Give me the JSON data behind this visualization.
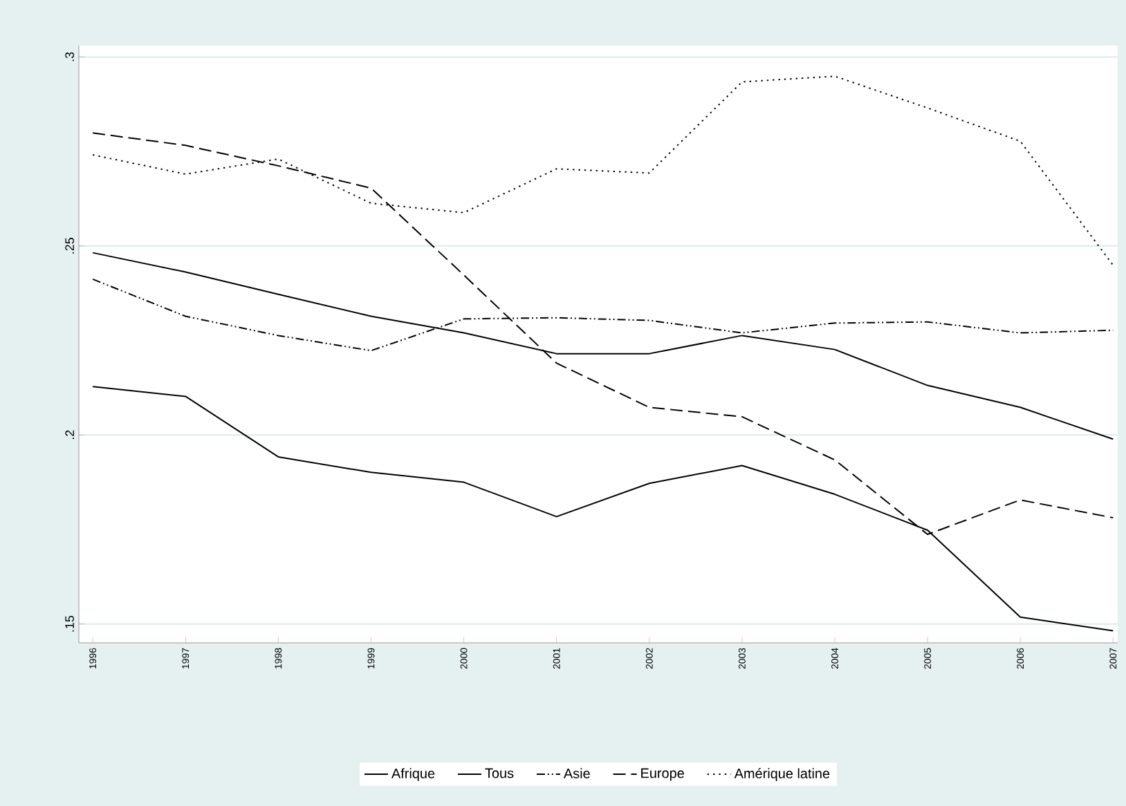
{
  "chart_data": {
    "type": "line",
    "x": [
      1996,
      1997,
      1998,
      1999,
      2000,
      2001,
      2002,
      2003,
      2004,
      2005,
      2006,
      2007
    ],
    "series": [
      {
        "name": "Afrique",
        "color": "#000000",
        "line_style": "solid",
        "values": [
          0.2128,
          0.2102,
          0.1942,
          0.1901,
          0.1875,
          0.1784,
          0.1872,
          0.1919,
          0.1843,
          0.1748,
          0.1518,
          0.1482
        ]
      },
      {
        "name": "Tous",
        "color": "#000000",
        "line_style": "solid",
        "values": [
          0.2482,
          0.2431,
          0.2372,
          0.2314,
          0.227,
          0.2215,
          0.2215,
          0.2263,
          0.2226,
          0.2131,
          0.2073,
          0.1989
        ]
      },
      {
        "name": "Asie",
        "color": "#000000",
        "line_style": "dashdotdot",
        "values": [
          0.2412,
          0.2314,
          0.2263,
          0.2223,
          0.2307,
          0.231,
          0.2303,
          0.227,
          0.2296,
          0.2299,
          0.227,
          0.2277
        ]
      },
      {
        "name": "Europe",
        "color": "#000000",
        "line_style": "dashed",
        "values": [
          0.2799,
          0.2766,
          0.2712,
          0.2653,
          0.2423,
          0.219,
          0.2073,
          0.2048,
          0.1934,
          0.1737,
          0.1828,
          0.1781
        ]
      },
      {
        "name": "Amérique latine",
        "color": "#000000",
        "line_style": "dotted",
        "values": [
          0.2741,
          0.269,
          0.273,
          0.2613,
          0.2588,
          0.2704,
          0.2693,
          0.2934,
          0.2949,
          0.2865,
          0.2777,
          0.2449
        ]
      }
    ],
    "xlim": [
      1995.85,
      2007.05
    ],
    "ylim": [
      0.145,
      0.303
    ],
    "xticks": [
      1996,
      1997,
      1998,
      1999,
      2000,
      2001,
      2002,
      2003,
      2004,
      2005,
      2006,
      2007
    ],
    "yticks": [
      {
        "value": 0.15,
        "label": ".15"
      },
      {
        "value": 0.2,
        "label": ".2"
      },
      {
        "value": 0.25,
        "label": ".25"
      },
      {
        "value": 0.3,
        "label": ".3"
      }
    ],
    "grid": "y",
    "legend": "bottom",
    "marker": "none"
  }
}
